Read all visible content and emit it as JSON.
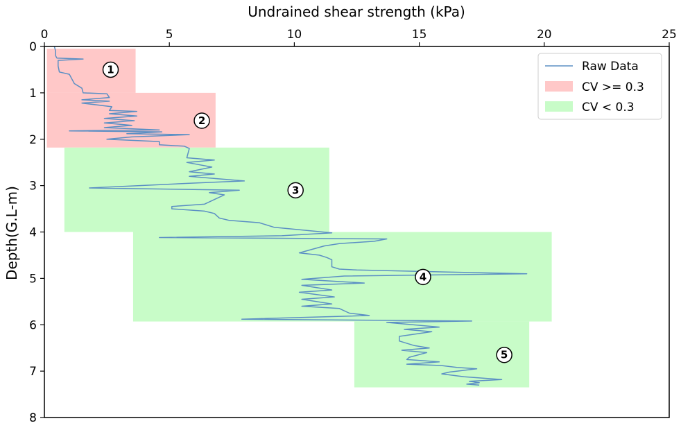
{
  "chart_data": {
    "type": "line",
    "xlabel": "Undrained shear strength (kPa)",
    "ylabel": "Depth(G.L-m)",
    "xlim": [
      0,
      25
    ],
    "ylim": [
      8,
      0
    ],
    "xticks": [
      "0",
      "5",
      "10",
      "15",
      "20",
      "25"
    ],
    "yticks": [
      "0",
      "1",
      "2",
      "3",
      "4",
      "5",
      "6",
      "7",
      "8"
    ],
    "legend_position": "top-right",
    "legend": [
      {
        "label": "Raw Data",
        "kind": "line",
        "color": "#5b8fc4"
      },
      {
        "label": "CV >= 0.3",
        "kind": "patch",
        "color": "#ffc8c8"
      },
      {
        "label": "CV < 0.3",
        "kind": "patch",
        "color": "#c8fcc8"
      }
    ],
    "zones": [
      {
        "label": "1",
        "x0": 0.1,
        "x1": 3.65,
        "y0": 0.05,
        "y1": 1.0,
        "cv_class": "high",
        "label_x": 2.65,
        "label_y": 0.5
      },
      {
        "label": "2",
        "x0": 0.1,
        "x1": 6.85,
        "y0": 1.0,
        "y1": 2.18,
        "cv_class": "high",
        "label_x": 6.3,
        "label_y": 1.6
      },
      {
        "label": "3",
        "x0": 0.8,
        "x1": 11.4,
        "y0": 2.18,
        "y1": 4.0,
        "cv_class": "low",
        "label_x": 10.05,
        "label_y": 3.1
      },
      {
        "label": "4",
        "x0": 3.55,
        "x1": 20.3,
        "y0": 4.0,
        "y1": 5.93,
        "cv_class": "low",
        "label_x": 15.15,
        "label_y": 4.97
      },
      {
        "label": "5",
        "x0": 12.4,
        "x1": 19.4,
        "y0": 5.93,
        "y1": 7.35,
        "cv_class": "low",
        "label_x": 18.4,
        "label_y": 6.65
      }
    ],
    "series": [
      {
        "name": "Raw Data",
        "points": [
          [
            0.4,
            0.0
          ],
          [
            0.45,
            0.1
          ],
          [
            0.45,
            0.2
          ],
          [
            0.5,
            0.25
          ],
          [
            1.55,
            0.27
          ],
          [
            0.55,
            0.3
          ],
          [
            0.55,
            0.42
          ],
          [
            0.6,
            0.55
          ],
          [
            1.0,
            0.6
          ],
          [
            1.1,
            0.7
          ],
          [
            1.2,
            0.8
          ],
          [
            1.5,
            0.9
          ],
          [
            1.55,
            1.0
          ],
          [
            2.5,
            1.02
          ],
          [
            2.6,
            1.1
          ],
          [
            1.5,
            1.15
          ],
          [
            2.6,
            1.18
          ],
          [
            1.5,
            1.22
          ],
          [
            2.7,
            1.3
          ],
          [
            2.6,
            1.38
          ],
          [
            3.7,
            1.4
          ],
          [
            2.6,
            1.45
          ],
          [
            3.7,
            1.5
          ],
          [
            2.4,
            1.55
          ],
          [
            3.6,
            1.6
          ],
          [
            2.4,
            1.65
          ],
          [
            3.5,
            1.7
          ],
          [
            2.4,
            1.75
          ],
          [
            4.6,
            1.8
          ],
          [
            1.0,
            1.82
          ],
          [
            4.7,
            1.84
          ],
          [
            3.3,
            1.88
          ],
          [
            5.8,
            1.9
          ],
          [
            3.5,
            1.95
          ],
          [
            2.5,
            2.0
          ],
          [
            4.6,
            2.05
          ],
          [
            4.6,
            2.12
          ],
          [
            5.6,
            2.15
          ],
          [
            5.8,
            2.2
          ],
          [
            5.75,
            2.3
          ],
          [
            5.7,
            2.4
          ],
          [
            6.8,
            2.45
          ],
          [
            5.7,
            2.5
          ],
          [
            6.7,
            2.6
          ],
          [
            5.8,
            2.7
          ],
          [
            6.8,
            2.75
          ],
          [
            5.8,
            2.8
          ],
          [
            6.9,
            2.85
          ],
          [
            8.0,
            2.9
          ],
          [
            5.8,
            2.95
          ],
          [
            1.8,
            3.05
          ],
          [
            7.8,
            3.1
          ],
          [
            6.6,
            3.15
          ],
          [
            7.2,
            3.2
          ],
          [
            6.8,
            3.3
          ],
          [
            6.4,
            3.4
          ],
          [
            5.1,
            3.45
          ],
          [
            5.1,
            3.5
          ],
          [
            6.4,
            3.55
          ],
          [
            6.8,
            3.6
          ],
          [
            7.0,
            3.7
          ],
          [
            7.4,
            3.75
          ],
          [
            8.6,
            3.8
          ],
          [
            9.2,
            3.9
          ],
          [
            11.5,
            4.02
          ],
          [
            9.5,
            4.08
          ],
          [
            4.6,
            4.12
          ],
          [
            13.7,
            4.15
          ],
          [
            13.2,
            4.2
          ],
          [
            11.8,
            4.25
          ],
          [
            11.2,
            4.3
          ],
          [
            10.2,
            4.45
          ],
          [
            11.0,
            4.5
          ],
          [
            11.3,
            4.55
          ],
          [
            11.5,
            4.6
          ],
          [
            11.5,
            4.75
          ],
          [
            11.8,
            4.8
          ],
          [
            12.5,
            4.82
          ],
          [
            19.3,
            4.9
          ],
          [
            12.0,
            4.95
          ],
          [
            10.3,
            5.02
          ],
          [
            12.8,
            5.1
          ],
          [
            10.3,
            5.15
          ],
          [
            11.5,
            5.25
          ],
          [
            10.2,
            5.3
          ],
          [
            11.6,
            5.4
          ],
          [
            10.3,
            5.45
          ],
          [
            11.5,
            5.55
          ],
          [
            10.3,
            5.6
          ],
          [
            11.8,
            5.65
          ],
          [
            12.2,
            5.75
          ],
          [
            13.0,
            5.8
          ],
          [
            7.9,
            5.88
          ],
          [
            17.1,
            5.92
          ],
          [
            13.7,
            5.95
          ],
          [
            15.8,
            6.05
          ],
          [
            14.4,
            6.1
          ],
          [
            15.5,
            6.15
          ],
          [
            14.2,
            6.25
          ],
          [
            14.2,
            6.35
          ],
          [
            14.8,
            6.45
          ],
          [
            15.4,
            6.5
          ],
          [
            14.3,
            6.55
          ],
          [
            15.3,
            6.6
          ],
          [
            14.6,
            6.7
          ],
          [
            14.5,
            6.75
          ],
          [
            15.8,
            6.8
          ],
          [
            14.5,
            6.85
          ],
          [
            15.9,
            6.88
          ],
          [
            16.5,
            6.92
          ],
          [
            17.3,
            6.95
          ],
          [
            16.2,
            7.02
          ],
          [
            15.9,
            7.06
          ],
          [
            16.8,
            7.12
          ],
          [
            18.3,
            7.18
          ],
          [
            17.0,
            7.22
          ],
          [
            17.4,
            7.25
          ],
          [
            16.9,
            7.28
          ],
          [
            17.4,
            7.3
          ]
        ]
      }
    ]
  }
}
